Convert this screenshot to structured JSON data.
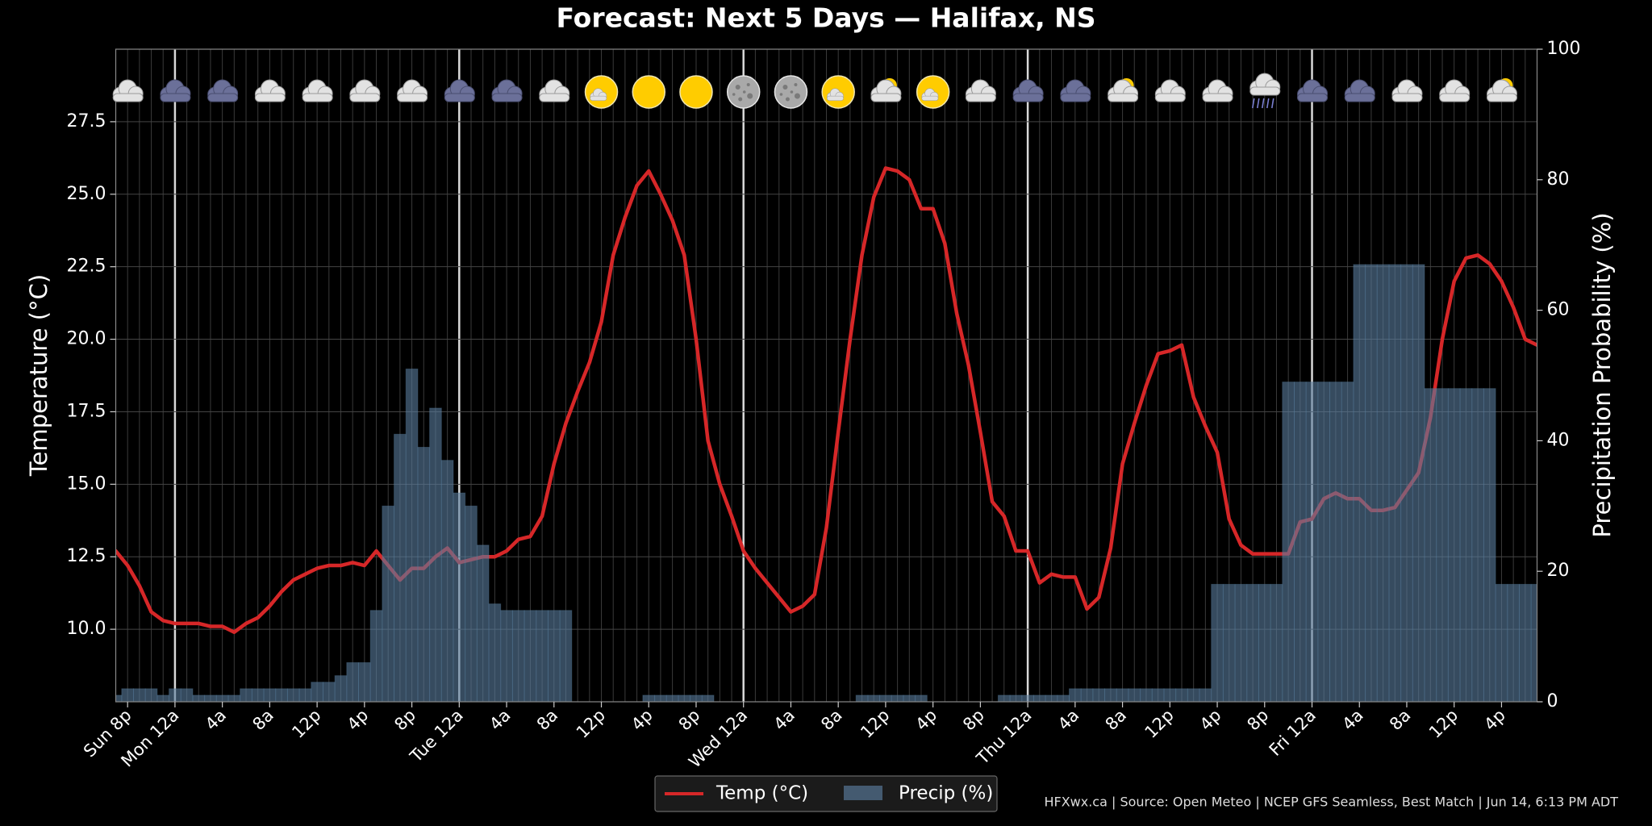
{
  "chart_data": {
    "type": "line",
    "title": "Forecast: Next 5 Days — Halifax, NS",
    "y_label": "Temperature (°C)",
    "y2_label": "Precipitation Probability (%)",
    "footer": "HFXwx.ca | Source: Open Meteo | NCEP GFS Seamless, Best Match | Jun 14, 6:13 PM ADT",
    "categories": [
      null,
      "Sun 8p",
      null,
      null,
      null,
      "Mon 12a",
      null,
      null,
      null,
      "4a",
      null,
      null,
      null,
      "8a",
      null,
      null,
      null,
      "12p",
      null,
      null,
      null,
      "4p",
      null,
      null,
      null,
      "8p",
      null,
      null,
      null,
      "Tue 12a",
      null,
      null,
      null,
      "4a",
      null,
      null,
      null,
      "8a",
      null,
      null,
      null,
      "12p",
      null,
      null,
      null,
      "4p",
      null,
      null,
      null,
      "8p",
      null,
      null,
      null,
      "Wed 12a",
      null,
      null,
      null,
      "4a",
      null,
      null,
      null,
      "8a",
      null,
      null,
      null,
      "12p",
      null,
      null,
      null,
      "4p",
      null,
      null,
      null,
      "8p",
      null,
      null,
      null,
      "Thu 12a",
      null,
      null,
      null,
      "4a",
      null,
      null,
      null,
      "8a",
      null,
      null,
      null,
      "12p",
      null,
      null,
      null,
      "4p",
      null,
      null,
      null,
      "8p",
      null,
      null,
      null,
      "Fri 12a",
      null,
      null,
      null,
      "4a",
      null,
      null,
      null,
      "8a",
      null,
      null,
      null,
      "12p",
      null,
      null,
      null,
      "4p",
      null,
      null,
      null
    ],
    "series": [
      {
        "name": "Temp (°C)",
        "type": "line",
        "color": "#d62728",
        "values": [
          12.7,
          12.2,
          11.5,
          10.6,
          10.3,
          10.2,
          10.2,
          10.2,
          10.1,
          10.1,
          9.9,
          10.2,
          10.4,
          10.8,
          11.3,
          11.7,
          11.9,
          12.1,
          12.2,
          12.2,
          12.3,
          12.2,
          12.7,
          12.2,
          11.7,
          12.1,
          12.1,
          12.5,
          12.8,
          12.3,
          12.4,
          12.5,
          12.5,
          12.7,
          13.1,
          13.2,
          13.9,
          15.7,
          17.1,
          18.2,
          19.2,
          20.6,
          22.9,
          24.2,
          25.3,
          25.8,
          25.0,
          24.1,
          22.9,
          20.0,
          16.5,
          15.0,
          13.9,
          12.7,
          12.1,
          11.6,
          11.1,
          10.6,
          10.8,
          11.2,
          13.5,
          16.8,
          20.0,
          22.9,
          24.9,
          25.9,
          25.8,
          25.5,
          24.5,
          24.5,
          23.3,
          20.9,
          19.1,
          16.8,
          14.4,
          13.9,
          12.7,
          12.7,
          11.6,
          11.9,
          11.8,
          11.8,
          10.7,
          11.1,
          12.8,
          15.7,
          17.1,
          18.4,
          19.5,
          19.6,
          19.8,
          18.0,
          17.0,
          16.1,
          13.8,
          12.9,
          12.6,
          12.6,
          12.6,
          12.6,
          13.7,
          13.8,
          14.5,
          14.7,
          14.5,
          14.5,
          14.1,
          14.1,
          14.2,
          14.8,
          15.4,
          17.3,
          20.0,
          22.0,
          22.8,
          22.9,
          22.6,
          22.0,
          21.1,
          20.0,
          19.8
        ]
      },
      {
        "name": "Precip (%)",
        "type": "bar",
        "axis": "y2",
        "color": "#5a7d9e",
        "values": [
          1,
          2,
          2,
          2,
          1,
          2,
          2,
          1,
          1,
          1,
          1,
          2,
          2,
          2,
          2,
          2,
          2,
          3,
          3,
          4,
          6,
          6,
          14,
          30,
          41,
          51,
          39,
          45,
          37,
          32,
          30,
          24,
          15,
          14,
          14,
          14,
          14,
          14,
          14,
          0,
          0,
          0,
          0,
          0,
          0,
          1,
          1,
          1,
          1,
          1,
          1,
          0,
          0,
          0,
          0,
          0,
          0,
          0,
          0,
          0,
          0,
          0,
          0,
          1,
          1,
          1,
          1,
          1,
          1,
          0,
          0,
          0,
          0,
          0,
          0,
          1,
          1,
          1,
          1,
          1,
          1,
          2,
          2,
          2,
          2,
          2,
          2,
          2,
          2,
          2,
          2,
          2,
          2,
          18,
          18,
          18,
          18,
          18,
          18,
          49,
          49,
          49,
          49,
          49,
          49,
          67,
          67,
          67,
          67,
          67,
          67,
          48,
          48,
          48,
          48,
          48,
          48,
          18,
          18,
          18,
          18
        ]
      }
    ],
    "ylim": [
      7.5,
      30
    ],
    "yticks": [
      {
        "value": 10,
        "label": "10.0"
      },
      12.5,
      {
        "value": 15,
        "label": "15.0"
      },
      17.5,
      {
        "value": 20,
        "label": "20.0"
      },
      22.5,
      {
        "value": 25,
        "label": "25.0"
      },
      27.5
    ],
    "y2lim": [
      0,
      100
    ],
    "y2ticks": [
      0,
      20,
      40,
      60,
      80,
      100
    ],
    "grid": true,
    "legend": "bottom"
  }
}
